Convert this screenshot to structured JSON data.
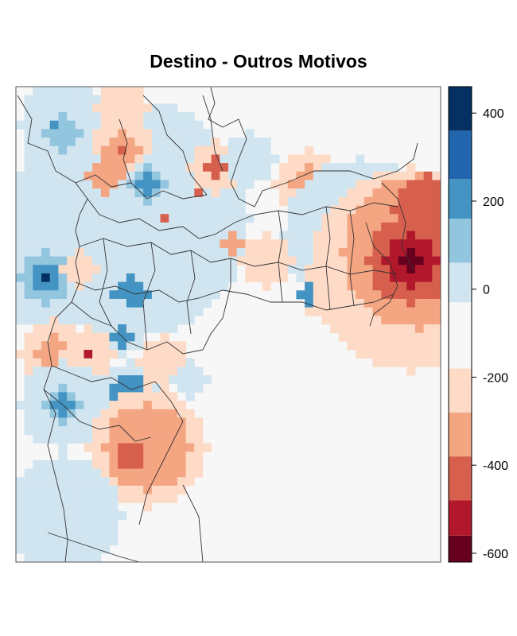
{
  "title": "Destino - Outros Motivos",
  "chart_data": {
    "type": "heatmap",
    "title": "Destino - Outros Motivos",
    "xlabel": "",
    "ylabel": "",
    "colorbar": {
      "range": [
        -620,
        460
      ],
      "bins": [
        {
          "from": -620,
          "to": -560,
          "color": "#67001f"
        },
        {
          "from": -560,
          "to": -480,
          "color": "#b2182b"
        },
        {
          "from": -480,
          "to": -380,
          "color": "#d6604d"
        },
        {
          "from": -380,
          "to": -280,
          "color": "#f4a582"
        },
        {
          "from": -280,
          "to": -180,
          "color": "#fddbc7"
        },
        {
          "from": -180,
          "to": -30,
          "color": "#f7f7f7"
        },
        {
          "from": -30,
          "to": 60,
          "color": "#d1e5f0"
        },
        {
          "from": 60,
          "to": 160,
          "color": "#92c5de"
        },
        {
          "from": 160,
          "to": 250,
          "color": "#4393c3"
        },
        {
          "from": 250,
          "to": 360,
          "color": "#2166ac"
        },
        {
          "from": 360,
          "to": 460,
          "color": "#053061"
        }
      ],
      "ticks": [
        400,
        200,
        0,
        -200,
        -400,
        -600
      ],
      "tick_labels": [
        "400",
        "200",
        "0",
        "-200",
        "-400",
        "-600"
      ]
    },
    "grid": {
      "nx": 50,
      "ny": 56,
      "background_level": 5,
      "blobs": [
        {
          "cx": 13,
          "cy": 15,
          "r": 14,
          "lvl": 6
        },
        {
          "cx": 5,
          "cy": 4,
          "r": 5,
          "lvl": 6
        },
        {
          "cx": 5,
          "cy": 5,
          "r": 2.2,
          "lvl": 7
        },
        {
          "cx": 4,
          "cy": 4,
          "r": 0.8,
          "lvl": 8
        },
        {
          "cx": 12,
          "cy": 2,
          "r": 3,
          "lvl": 4
        },
        {
          "cx": 12,
          "cy": 6,
          "r": 3.5,
          "lvl": 4
        },
        {
          "cx": 12,
          "cy": 7,
          "r": 2,
          "lvl": 3
        },
        {
          "cx": 12,
          "cy": 7,
          "r": 0.8,
          "lvl": 2
        },
        {
          "cx": 10,
          "cy": 10,
          "r": 2,
          "lvl": 3
        },
        {
          "cx": 15,
          "cy": 11,
          "r": 2,
          "lvl": 7
        },
        {
          "cx": 15,
          "cy": 11,
          "r": 1,
          "lvl": 8
        },
        {
          "cx": 23,
          "cy": 9,
          "r": 3,
          "lvl": 4
        },
        {
          "cx": 23,
          "cy": 9,
          "r": 1,
          "lvl": 2
        },
        {
          "cx": 21,
          "cy": 12,
          "r": 0.8,
          "lvl": 2
        },
        {
          "cx": 27,
          "cy": 8,
          "r": 3,
          "lvl": 6
        },
        {
          "cx": 17,
          "cy": 15,
          "r": 0.8,
          "lvl": 2
        },
        {
          "cx": 3,
          "cy": 22,
          "r": 6,
          "lvl": 6
        },
        {
          "cx": 3,
          "cy": 22,
          "r": 3,
          "lvl": 7
        },
        {
          "cx": 3,
          "cy": 22,
          "r": 1.5,
          "lvl": 8
        },
        {
          "cx": 3,
          "cy": 22,
          "r": 0.6,
          "lvl": 10
        },
        {
          "cx": 7,
          "cy": 21,
          "r": 2,
          "lvl": 4
        },
        {
          "cx": 13,
          "cy": 24,
          "r": 2,
          "lvl": 8
        },
        {
          "cx": 12,
          "cy": 28,
          "r": 3,
          "lvl": 6
        },
        {
          "cx": 12,
          "cy": 29,
          "r": 1,
          "lvl": 8
        },
        {
          "cx": 4,
          "cy": 31,
          "r": 4,
          "lvl": 4
        },
        {
          "cx": 4,
          "cy": 31,
          "r": 2,
          "lvl": 3
        },
        {
          "cx": 8,
          "cy": 31,
          "r": 3,
          "lvl": 4
        },
        {
          "cx": 8,
          "cy": 31,
          "r": 0.7,
          "lvl": 1
        },
        {
          "cx": 5,
          "cy": 37,
          "r": 5,
          "lvl": 6
        },
        {
          "cx": 5,
          "cy": 37,
          "r": 2,
          "lvl": 7
        },
        {
          "cx": 5,
          "cy": 37,
          "r": 1,
          "lvl": 8
        },
        {
          "cx": 13,
          "cy": 36,
          "r": 4,
          "lvl": 6
        },
        {
          "cx": 13,
          "cy": 36,
          "r": 2.5,
          "lvl": 8
        },
        {
          "cx": 14,
          "cy": 37,
          "r": 1.2,
          "lvl": 9
        },
        {
          "cx": 15,
          "cy": 42,
          "r": 7,
          "lvl": 4
        },
        {
          "cx": 15,
          "cy": 42,
          "r": 5,
          "lvl": 3
        },
        {
          "cx": 13,
          "cy": 43,
          "r": 1.5,
          "lvl": 2
        },
        {
          "cx": 17,
          "cy": 32,
          "r": 3,
          "lvl": 4
        },
        {
          "cx": 20,
          "cy": 34,
          "r": 2,
          "lvl": 6
        },
        {
          "cx": 5,
          "cy": 50,
          "r": 7,
          "lvl": 6
        },
        {
          "cx": 34,
          "cy": 11,
          "r": 4,
          "lvl": 4
        },
        {
          "cx": 34,
          "cy": 11,
          "r": 2,
          "lvl": 3
        },
        {
          "cx": 40,
          "cy": 17,
          "r": 9,
          "lvl": 6
        },
        {
          "cx": 36,
          "cy": 24,
          "r": 3,
          "lvl": 4
        },
        {
          "cx": 34,
          "cy": 24,
          "r": 1,
          "lvl": 8
        },
        {
          "cx": 46,
          "cy": 21,
          "r": 12,
          "lvl": 4
        },
        {
          "cx": 47,
          "cy": 19,
          "r": 9,
          "lvl": 3
        },
        {
          "cx": 48,
          "cy": 14,
          "r": 4,
          "lvl": 2
        },
        {
          "cx": 46,
          "cy": 20,
          "r": 5,
          "lvl": 2
        },
        {
          "cx": 46,
          "cy": 20,
          "r": 3,
          "lvl": 1
        },
        {
          "cx": 46,
          "cy": 20,
          "r": 1,
          "lvl": 0
        },
        {
          "cx": 29,
          "cy": 20,
          "r": 3,
          "lvl": 4
        },
        {
          "cx": 25,
          "cy": 18,
          "r": 1,
          "lvl": 3
        }
      ]
    }
  }
}
